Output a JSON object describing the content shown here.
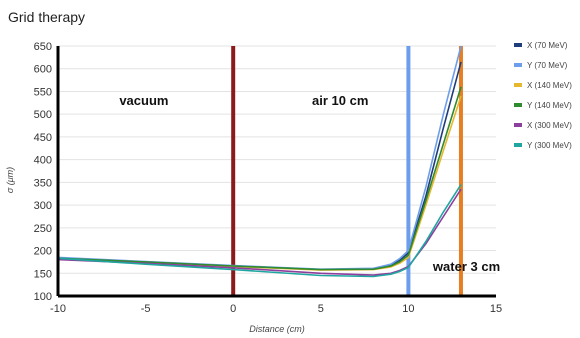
{
  "chart_data": {
    "type": "line",
    "title": "Grid therapy",
    "xlabel": "Distance (cm)",
    "ylabel": "σ (μm)",
    "xlim": [
      -10,
      15
    ],
    "ylim": [
      100,
      650
    ],
    "x_ticks": [
      "-10",
      "-5",
      "0",
      "5",
      "10",
      "15"
    ],
    "y_ticks": [
      "100",
      "150",
      "200",
      "250",
      "300",
      "350",
      "400",
      "450",
      "500",
      "550",
      "600",
      "650"
    ],
    "grid": "horizontal",
    "legend": "right",
    "series": [
      {
        "name": "X (70 MeV)",
        "color": "#1f3d7a",
        "x": [
          -10,
          -5,
          0,
          5,
          8,
          9,
          9.5,
          10,
          11,
          12,
          13
        ],
        "y": [
          183,
          175,
          166,
          158,
          160,
          168,
          178,
          195,
          320,
          470,
          615
        ]
      },
      {
        "name": "Y (70 MeV)",
        "color": "#6d9eeb",
        "x": [
          -10,
          -5,
          0,
          5,
          8,
          9,
          9.5,
          10,
          11,
          12,
          13
        ],
        "y": [
          185,
          176,
          167,
          159,
          161,
          170,
          182,
          200,
          340,
          500,
          650
        ]
      },
      {
        "name": "X (140 MeV)",
        "color": "#e6b730",
        "x": [
          -10,
          -5,
          0,
          5,
          8,
          9,
          9.5,
          10,
          11,
          12,
          13
        ],
        "y": [
          182,
          174,
          165,
          157,
          158,
          164,
          172,
          185,
          300,
          420,
          540
        ]
      },
      {
        "name": "Y (140 MeV)",
        "color": "#2e8b2e",
        "x": [
          -10,
          -5,
          0,
          5,
          8,
          9,
          9.5,
          10,
          11,
          12,
          13
        ],
        "y": [
          183,
          175,
          166,
          158,
          159,
          166,
          175,
          190,
          310,
          435,
          560
        ]
      },
      {
        "name": "X (300 MeV)",
        "color": "#8e3e9c",
        "x": [
          -10,
          -5,
          0,
          5,
          8,
          9,
          9.5,
          10,
          11,
          12,
          13
        ],
        "y": [
          180,
          172,
          162,
          150,
          146,
          150,
          156,
          165,
          215,
          275,
          335
        ]
      },
      {
        "name": "Y (300 MeV)",
        "color": "#1fa6a0",
        "x": [
          -10,
          -5,
          0,
          5,
          8,
          9,
          9.5,
          10,
          11,
          12,
          13
        ],
        "y": [
          183,
          170,
          158,
          145,
          143,
          148,
          154,
          163,
          220,
          285,
          345
        ]
      }
    ],
    "vertical_markers": [
      {
        "x": 0,
        "color": "#8b1a1a"
      },
      {
        "x": 10,
        "color": "#6d9eeb"
      },
      {
        "x": 13,
        "color": "#e67e22"
      }
    ],
    "annotations": [
      {
        "text": "vacuum",
        "x": -6.5,
        "y": 520
      },
      {
        "text": "air 10 cm",
        "x": 4.5,
        "y": 520
      },
      {
        "text": "water 3 cm",
        "x": 11.4,
        "y": 155
      }
    ]
  }
}
